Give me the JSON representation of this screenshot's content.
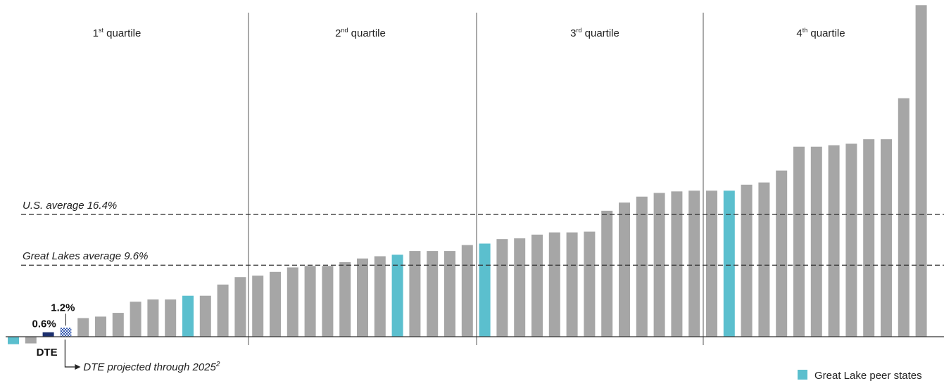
{
  "chart_data": {
    "type": "bar",
    "quartiles": [
      {
        "num": "1",
        "suffix": "st",
        "word": "quartile"
      },
      {
        "num": "2",
        "suffix": "nd",
        "word": "quartile"
      },
      {
        "num": "3",
        "suffix": "rd",
        "word": "quartile"
      },
      {
        "num": "4",
        "suffix": "th",
        "word": "quartile"
      }
    ],
    "reference_lines": [
      {
        "label": "U.S. average 16.4%",
        "value": 16.4
      },
      {
        "label": "Great Lakes average 9.6%",
        "value": 9.6
      }
    ],
    "ylim": [
      -1.2,
      43
    ],
    "bars": [
      {
        "value": -1.0,
        "kind": "peer"
      },
      {
        "value": -0.9,
        "kind": "other"
      },
      {
        "value": 0.6,
        "kind": "dte",
        "label": "0.6%"
      },
      {
        "value": 1.2,
        "kind": "dte_projected",
        "label": "1.2%"
      },
      {
        "value": 2.5,
        "kind": "other"
      },
      {
        "value": 2.7,
        "kind": "other"
      },
      {
        "value": 3.2,
        "kind": "other"
      },
      {
        "value": 4.7,
        "kind": "other"
      },
      {
        "value": 5.0,
        "kind": "other"
      },
      {
        "value": 5.0,
        "kind": "other"
      },
      {
        "value": 5.5,
        "kind": "peer"
      },
      {
        "value": 5.5,
        "kind": "other"
      },
      {
        "value": 7.0,
        "kind": "other"
      },
      {
        "value": 8.0,
        "kind": "other"
      },
      {
        "value": 8.2,
        "kind": "other"
      },
      {
        "value": 8.7,
        "kind": "other"
      },
      {
        "value": 9.3,
        "kind": "other"
      },
      {
        "value": 9.5,
        "kind": "other"
      },
      {
        "value": 9.5,
        "kind": "other"
      },
      {
        "value": 10.0,
        "kind": "other"
      },
      {
        "value": 10.5,
        "kind": "other"
      },
      {
        "value": 10.8,
        "kind": "other"
      },
      {
        "value": 11.0,
        "kind": "peer"
      },
      {
        "value": 11.5,
        "kind": "other"
      },
      {
        "value": 11.5,
        "kind": "other"
      },
      {
        "value": 11.5,
        "kind": "other"
      },
      {
        "value": 12.3,
        "kind": "other"
      },
      {
        "value": 12.5,
        "kind": "peer"
      },
      {
        "value": 13.1,
        "kind": "other"
      },
      {
        "value": 13.2,
        "kind": "other"
      },
      {
        "value": 13.7,
        "kind": "other"
      },
      {
        "value": 14.0,
        "kind": "other"
      },
      {
        "value": 14.0,
        "kind": "other"
      },
      {
        "value": 14.1,
        "kind": "other"
      },
      {
        "value": 16.9,
        "kind": "other"
      },
      {
        "value": 18.0,
        "kind": "other"
      },
      {
        "value": 18.8,
        "kind": "other"
      },
      {
        "value": 19.3,
        "kind": "other"
      },
      {
        "value": 19.5,
        "kind": "other"
      },
      {
        "value": 19.6,
        "kind": "other"
      },
      {
        "value": 19.6,
        "kind": "other"
      },
      {
        "value": 19.6,
        "kind": "peer"
      },
      {
        "value": 20.4,
        "kind": "other"
      },
      {
        "value": 20.7,
        "kind": "other"
      },
      {
        "value": 22.3,
        "kind": "other"
      },
      {
        "value": 25.5,
        "kind": "other"
      },
      {
        "value": 25.5,
        "kind": "other"
      },
      {
        "value": 25.7,
        "kind": "other"
      },
      {
        "value": 25.9,
        "kind": "other"
      },
      {
        "value": 26.5,
        "kind": "other"
      },
      {
        "value": 26.5,
        "kind": "other"
      },
      {
        "value": 32.0,
        "kind": "other"
      },
      {
        "value": 44.5,
        "kind": "other"
      }
    ],
    "dte_label": "DTE",
    "projection_note": "DTE projected through 2025",
    "projection_footnote": "2",
    "legend": [
      {
        "label": "Great Lake peer states",
        "color": "#5bbfce"
      }
    ],
    "colors": {
      "other": "#a6a6a6",
      "peer": "#5bbfce",
      "dte": "#1c2f6e",
      "dte_projected": "#3a5db0",
      "axis": "#333333"
    },
    "grid": false
  }
}
